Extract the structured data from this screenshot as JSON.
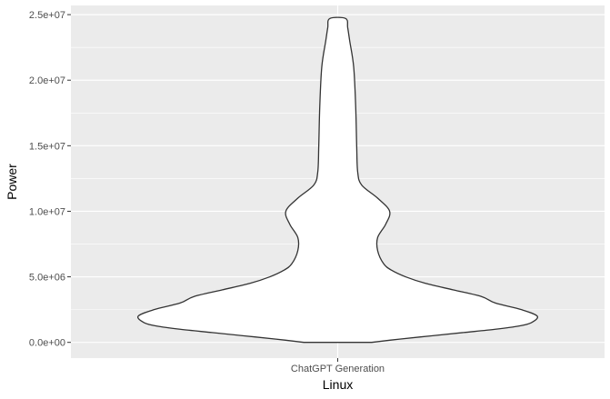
{
  "chart_data": {
    "type": "violin",
    "categories": [
      "ChatGPT Generation"
    ],
    "xlabel": "Linux",
    "ylabel": "Power",
    "ylim": [
      -1200000,
      25700000
    ],
    "y_ticks": [
      0,
      5000000,
      10000000,
      15000000,
      20000000,
      25000000
    ],
    "y_tick_labels": [
      "0.0e+00",
      "5.0e+06",
      "1.0e+07",
      "1.5e+07",
      "2.0e+07",
      "2.5e+07"
    ],
    "grid": true,
    "series": [
      {
        "category": "ChatGPT Generation",
        "y_min": 0,
        "y_max": 24700000,
        "density_profile": [
          {
            "y": 0,
            "width": 0.17
          },
          {
            "y": 250000,
            "width": 0.31
          },
          {
            "y": 500000,
            "width": 0.47
          },
          {
            "y": 750000,
            "width": 0.63
          },
          {
            "y": 1000000,
            "width": 0.79
          },
          {
            "y": 1250000,
            "width": 0.91
          },
          {
            "y": 1500000,
            "width": 0.97
          },
          {
            "y": 2000000,
            "width": 1.0
          },
          {
            "y": 2500000,
            "width": 0.92
          },
          {
            "y": 3000000,
            "width": 0.79
          },
          {
            "y": 3500000,
            "width": 0.72
          },
          {
            "y": 4000000,
            "width": 0.58
          },
          {
            "y": 4500000,
            "width": 0.44
          },
          {
            "y": 5000000,
            "width": 0.34
          },
          {
            "y": 5500000,
            "width": 0.27
          },
          {
            "y": 6000000,
            "width": 0.23
          },
          {
            "y": 7000000,
            "width": 0.2
          },
          {
            "y": 8000000,
            "width": 0.2
          },
          {
            "y": 9000000,
            "width": 0.24
          },
          {
            "y": 10000000,
            "width": 0.26
          },
          {
            "y": 11000000,
            "width": 0.2
          },
          {
            "y": 12000000,
            "width": 0.12
          },
          {
            "y": 13000000,
            "width": 0.1
          },
          {
            "y": 15000000,
            "width": 0.095
          },
          {
            "y": 18000000,
            "width": 0.09
          },
          {
            "y": 21000000,
            "width": 0.08
          },
          {
            "y": 23000000,
            "width": 0.06
          },
          {
            "y": 24000000,
            "width": 0.05
          },
          {
            "y": 24700000,
            "width": 0.04
          }
        ]
      }
    ]
  }
}
